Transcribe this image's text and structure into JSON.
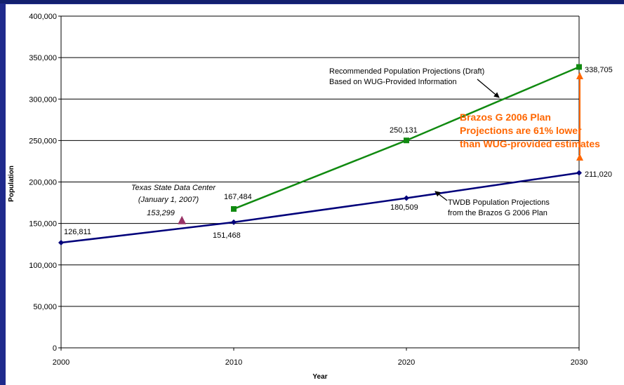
{
  "colors": {
    "frame": "#1f2a8c",
    "twdb_line": "#00007a",
    "recommended_line": "#108a10",
    "sdc_marker": "#993366",
    "highlight": "#ff6600",
    "grid": "#000000"
  },
  "chart_data": {
    "type": "line",
    "xlabel": "Year",
    "ylabel": "Population",
    "xlim": [
      2000,
      2030
    ],
    "ylim": [
      0,
      400000
    ],
    "x_ticks": [
      "2000",
      "2010",
      "2020",
      "2030"
    ],
    "y_ticks": [
      "0",
      "50,000",
      "100,000",
      "150,000",
      "200,000",
      "250,000",
      "300,000",
      "350,000",
      "400,000"
    ],
    "grid": "horizontal",
    "series": [
      {
        "key": "twdb",
        "points": [
          [
            2000,
            126811
          ],
          [
            2010,
            151468
          ],
          [
            2020,
            180509
          ],
          [
            2030,
            211020
          ]
        ],
        "labels": [
          "126,811",
          "151,468",
          "180,509",
          "211,020"
        ],
        "marker": "diamond"
      },
      {
        "key": "recommended",
        "points": [
          [
            2010,
            167484
          ],
          [
            2020,
            250131
          ],
          [
            2030,
            338705
          ]
        ],
        "labels": [
          "167,484",
          "250,131",
          "338,705"
        ],
        "marker": "square"
      },
      {
        "key": "sdc",
        "points": [
          [
            2007,
            153299
          ]
        ],
        "labels": [
          "153,299"
        ],
        "marker": "triangle"
      }
    ],
    "annotations": {
      "recommended_note": [
        "Recommended Population Projections (Draft)",
        "Based on WUG-Provided Information"
      ],
      "twdb_note": [
        "TWDB Population Projections",
        "from the Brazos G 2006 Plan"
      ],
      "sdc_note": [
        "Texas State Data Center",
        "(January 1, 2007)"
      ],
      "highlight": [
        "Brazos G 2006 Plan",
        "Projections are 61% lower",
        "than WUG-provided estimates"
      ]
    }
  }
}
